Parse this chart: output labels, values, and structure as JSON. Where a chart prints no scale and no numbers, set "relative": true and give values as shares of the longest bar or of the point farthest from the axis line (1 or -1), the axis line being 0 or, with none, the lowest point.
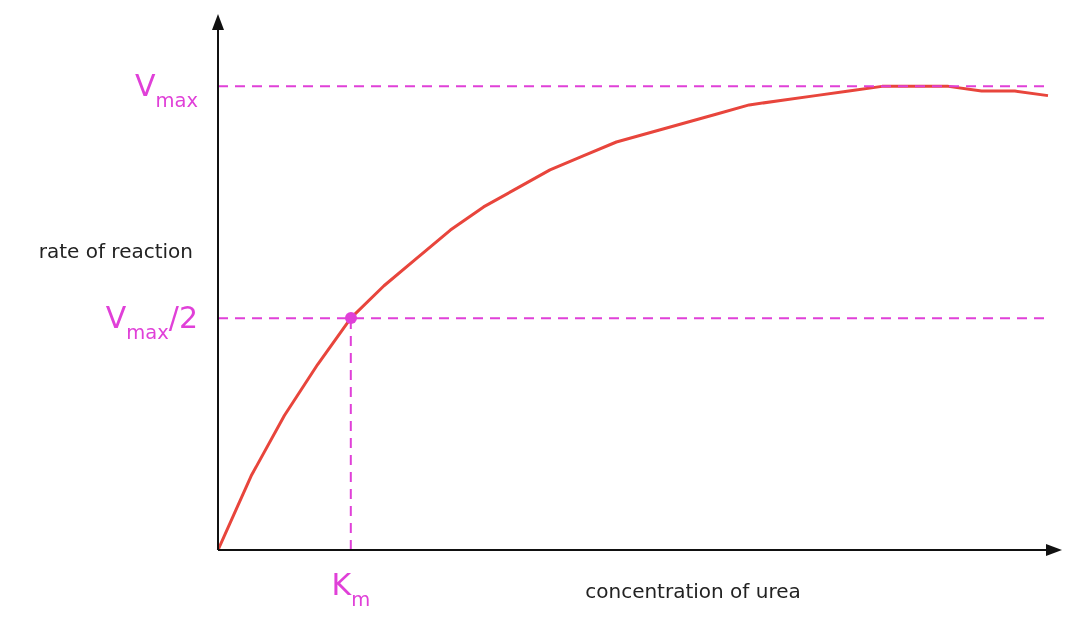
{
  "chart_data": {
    "type": "line",
    "relative": true,
    "xlabel": "concentration of urea",
    "ylabel": "rate of reaction",
    "categories": [
      null,
      null,
      null,
      null,
      null,
      null,
      null,
      null,
      null,
      null,
      null,
      null,
      null,
      null,
      null,
      null,
      null,
      null,
      null,
      null,
      null,
      null,
      null,
      null,
      null,
      null
    ],
    "series": [
      {
        "color": "#e8453c",
        "values": [
          0,
          0.16,
          0.29,
          0.4,
          0.5,
          0.57,
          0.63,
          0.69,
          0.74,
          0.78,
          0.82,
          0.85,
          0.88,
          0.9,
          0.92,
          0.94,
          0.96,
          0.97,
          0.98,
          0.99,
          1,
          1,
          1,
          0.99,
          0.99,
          0.98
        ]
      }
    ],
    "ref_lines": [
      {
        "axis": "y",
        "value": 1,
        "label": "V$_{max}$",
        "color": "#e040d8",
        "line_style": "dashed"
      },
      {
        "axis": "y",
        "value": 0.5,
        "label": "V$_{max}$/2",
        "color": "#e040d8",
        "line_style": "dashed"
      }
    ],
    "annotations": [
      "K$_{m}$"
    ],
    "legend": false,
    "marker": "none"
  }
}
